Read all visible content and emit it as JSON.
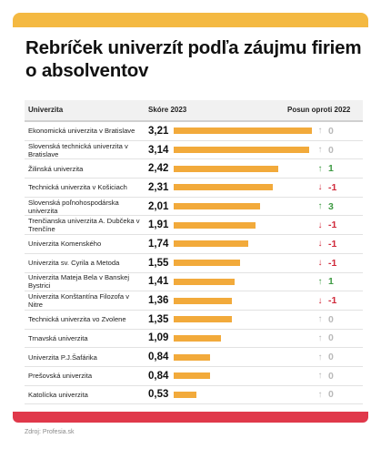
{
  "title": "Rebríček univerzít podľa záujmu firiem o absolventov",
  "source": "Zdroj: Profesia.sk",
  "colors": {
    "accent_top": "#f4b942",
    "accent_bottom": "#e0384a",
    "bar": "#f2aa3b",
    "up": "#3e9a43",
    "down": "#d0293a",
    "same": "#b9b9b9"
  },
  "chart_data": {
    "type": "table",
    "columns": [
      "Univerzita",
      "Skóre 2023",
      "Posun oproti 2022"
    ],
    "rows": [
      {
        "name": "Ekonomická univerzita v Bratislave",
        "score": 3.21,
        "score_label": "3,21",
        "change": 0,
        "change_label": "0"
      },
      {
        "name": "Slovenská technická univerzita v Bratislave",
        "score": 3.14,
        "score_label": "3,14",
        "change": 0,
        "change_label": "0"
      },
      {
        "name": "Žilinská univerzita",
        "score": 2.42,
        "score_label": "2,42",
        "change": 1,
        "change_label": "1"
      },
      {
        "name": "Technická univerzita v Košiciach",
        "score": 2.31,
        "score_label": "2,31",
        "change": -1,
        "change_label": "-1"
      },
      {
        "name": "Slovenská poľnohospodárska univerzita",
        "score": 2.01,
        "score_label": "2,01",
        "change": 3,
        "change_label": "3"
      },
      {
        "name": "Trenčianska univerzita A. Dubčeka v Trenčíne",
        "score": 1.91,
        "score_label": "1,91",
        "change": -1,
        "change_label": "-1"
      },
      {
        "name": "Univerzita Komenského",
        "score": 1.74,
        "score_label": "1,74",
        "change": -1,
        "change_label": "-1"
      },
      {
        "name": "Univerzita sv. Cyrila a Metoda",
        "score": 1.55,
        "score_label": "1,55",
        "change": -1,
        "change_label": "-1"
      },
      {
        "name": "Univerzita Mateja Bela v Banskej Bystrici",
        "score": 1.41,
        "score_label": "1,41",
        "change": 1,
        "change_label": "1"
      },
      {
        "name": "Univerzita Konštantína Filozofa v Nitre",
        "score": 1.36,
        "score_label": "1,36",
        "change": -1,
        "change_label": "-1"
      },
      {
        "name": "Technická univerzita vo Zvolene",
        "score": 1.35,
        "score_label": "1,35",
        "change": 0,
        "change_label": "0"
      },
      {
        "name": "Trnavská univerzita",
        "score": 1.09,
        "score_label": "1,09",
        "change": 0,
        "change_label": "0"
      },
      {
        "name": "Univerzita P.J.Šafárika",
        "score": 0.84,
        "score_label": "0,84",
        "change": 0,
        "change_label": "0"
      },
      {
        "name": "Prešovská univerzita",
        "score": 0.84,
        "score_label": "0,84",
        "change": 0,
        "change_label": "0"
      },
      {
        "name": "Katolícka univerzita",
        "score": 0.53,
        "score_label": "0,53",
        "change": 0,
        "change_label": "0"
      }
    ],
    "score_max": 3.21
  }
}
